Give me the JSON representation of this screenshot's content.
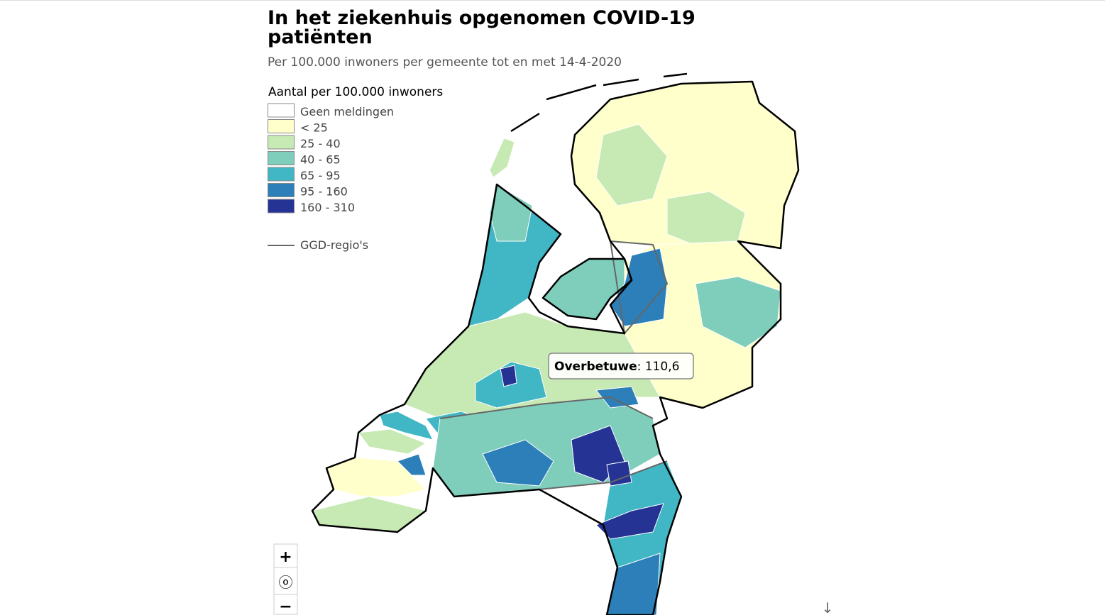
{
  "header": {
    "title_line1": "In het ziekenhuis opgenomen COVID-19",
    "title_line2": "patiënten",
    "subtitle": "Per 100.000 inwoners per gemeente tot en met 14-4-2020"
  },
  "legend": {
    "title": "Aantal per 100.000 inwoners",
    "items": [
      {
        "label": "Geen meldingen",
        "color": "#ffffff"
      },
      {
        "label": "< 25",
        "color": "#ffffcc"
      },
      {
        "label": "25 - 40",
        "color": "#c7e9b4"
      },
      {
        "label": "40 - 65",
        "color": "#7fcdbb"
      },
      {
        "label": "65 - 95",
        "color": "#41b6c4"
      },
      {
        "label": "95 - 160",
        "color": "#2c7fb8"
      },
      {
        "label": "160 - 310",
        "color": "#253494"
      }
    ],
    "line_label": "GGD-regio's"
  },
  "tooltip": {
    "name": "Overbetuwe",
    "text": ": 110,6"
  },
  "controls": {
    "zoom_in": "+",
    "reset": "ⓞ",
    "zoom_out": "−",
    "scroll_hint": "↓"
  }
}
